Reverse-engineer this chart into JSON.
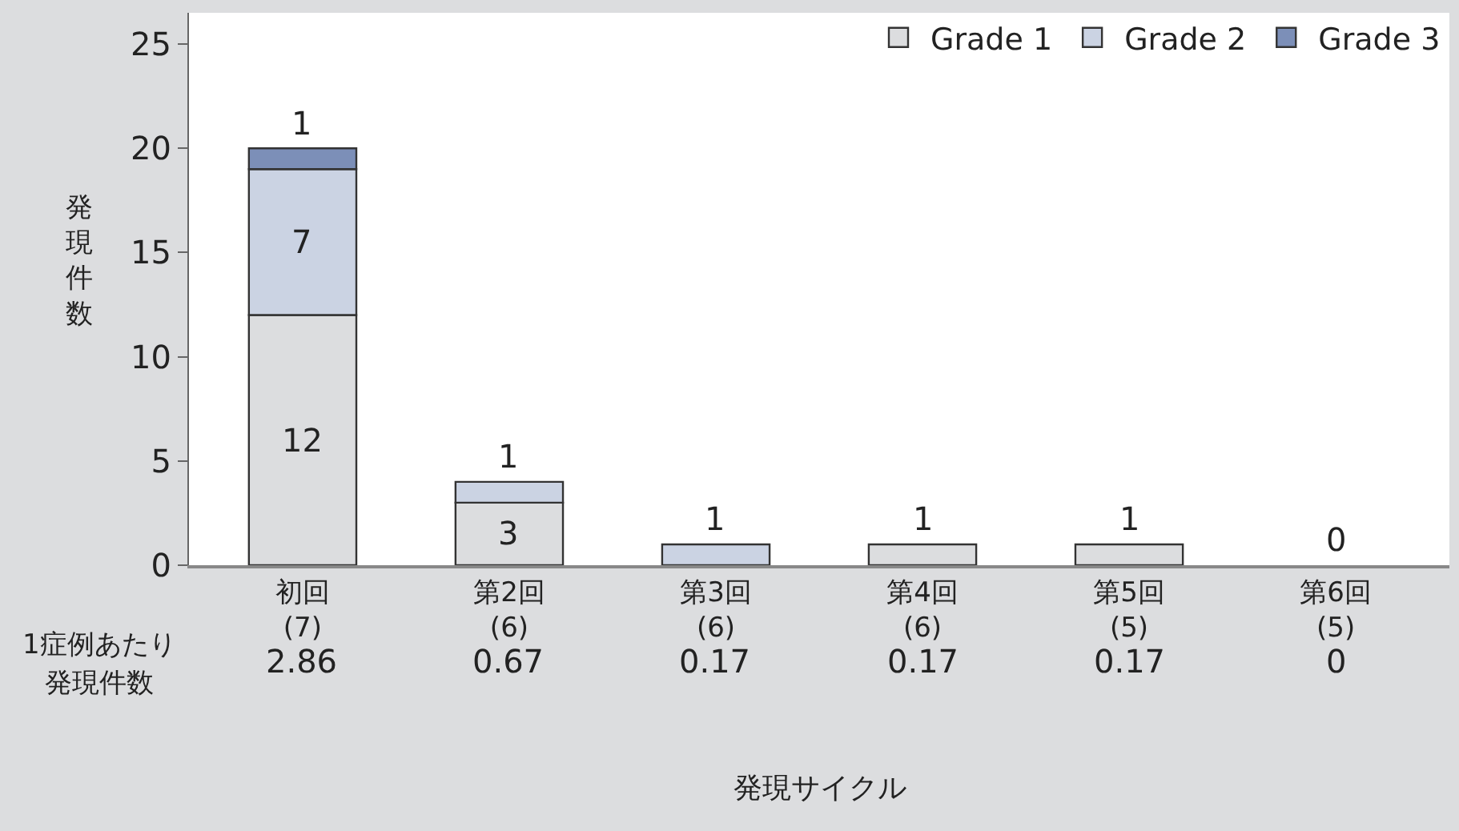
{
  "chart_data": {
    "type": "bar",
    "stacked": true,
    "xlabel": "発現サイクル",
    "ylabel": "発現件数",
    "categories": [
      "初回\n(7)",
      "第2回\n(6)",
      "第3回\n(6)",
      "第4回\n(6)",
      "第5回\n(5)",
      "第6回\n(5)"
    ],
    "series": [
      {
        "name": "Grade 1",
        "color": "#dcdddf",
        "values": [
          12,
          3,
          0,
          1,
          1,
          0
        ],
        "value_labels": [
          "12",
          "3",
          null,
          "1",
          "1",
          "0"
        ]
      },
      {
        "name": "Grade 2",
        "color": "#cbd3e3",
        "values": [
          7,
          1,
          1,
          0,
          0,
          0
        ],
        "value_labels": [
          "7",
          "1",
          "1",
          null,
          null,
          null
        ]
      },
      {
        "name": "Grade 3",
        "color": "#7c8fb8",
        "values": [
          1,
          0,
          0,
          0,
          0,
          0
        ],
        "value_labels": [
          "1",
          null,
          null,
          null,
          null,
          null
        ]
      }
    ],
    "ylim": [
      0,
      26.5
    ],
    "yticks": [
      0,
      5,
      10,
      15,
      20,
      25
    ],
    "legend": "top right",
    "annotations": [
      "1症例あたり",
      "発現件数",
      "2.86",
      "0.67",
      "0.17",
      "0.17",
      "0.17",
      "0"
    ]
  }
}
